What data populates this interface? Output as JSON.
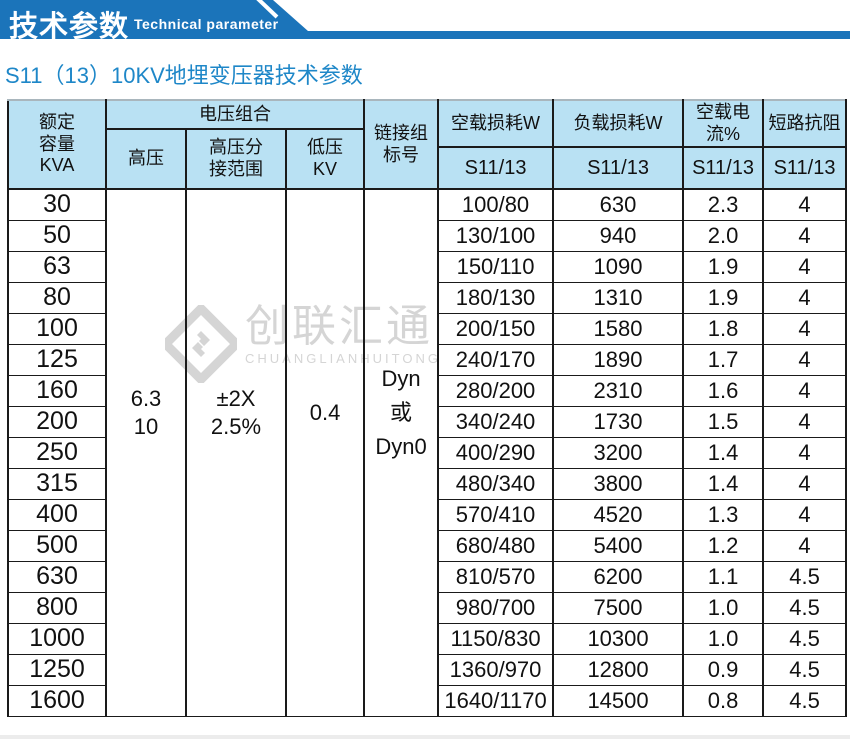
{
  "banner": {
    "title": "技术参数",
    "subtitle": "Technical parameter"
  },
  "section_title": "S11（13）10KV地埋变压器技术参数",
  "watermark": {
    "text": "创联汇通",
    "subtext": "CHUANGLIANHUITONG"
  },
  "colors": {
    "banner_blue": "#1b74ba",
    "section_title_blue": "#1e87c8",
    "table_header_bg": "#b9e1f3",
    "table_border": "#1a1a1a",
    "watermark_gray": "#d5d5d5"
  },
  "table": {
    "headers": {
      "capacity": "额定\n容量\nKVA",
      "voltage_combo": "电压组合",
      "high_voltage": "高压",
      "hv_tap_range": "高压分\n接范围",
      "low_voltage": "低压\nKV",
      "link_group": "链接组\n标号",
      "no_load_loss": "空载损耗W",
      "load_loss": "负载损耗W",
      "no_load_current": "空载电流%",
      "short_circuit_impedance": "短路抗阻",
      "model_s11_13": "S11/13"
    },
    "merged_values": {
      "high_voltage": "6.3\n10",
      "hv_tap_range": "±2X\n2.5%",
      "low_voltage": "0.4",
      "link_group": "Dyn\n或\nDyn0"
    },
    "rows": [
      {
        "kva": "30",
        "no_load_loss": "100/80",
        "load_loss": "630",
        "no_load_current": "2.3",
        "impedance": "4"
      },
      {
        "kva": "50",
        "no_load_loss": "130/100",
        "load_loss": "940",
        "no_load_current": "2.0",
        "impedance": "4"
      },
      {
        "kva": "63",
        "no_load_loss": "150/110",
        "load_loss": "1090",
        "no_load_current": "1.9",
        "impedance": "4"
      },
      {
        "kva": "80",
        "no_load_loss": "180/130",
        "load_loss": "1310",
        "no_load_current": "1.9",
        "impedance": "4"
      },
      {
        "kva": "100",
        "no_load_loss": "200/150",
        "load_loss": "1580",
        "no_load_current": "1.8",
        "impedance": "4"
      },
      {
        "kva": "125",
        "no_load_loss": "240/170",
        "load_loss": "1890",
        "no_load_current": "1.7",
        "impedance": "4"
      },
      {
        "kva": "160",
        "no_load_loss": "280/200",
        "load_loss": "2310",
        "no_load_current": "1.6",
        "impedance": "4"
      },
      {
        "kva": "200",
        "no_load_loss": "340/240",
        "load_loss": "1730",
        "no_load_current": "1.5",
        "impedance": "4"
      },
      {
        "kva": "250",
        "no_load_loss": "400/290",
        "load_loss": "3200",
        "no_load_current": "1.4",
        "impedance": "4"
      },
      {
        "kva": "315",
        "no_load_loss": "480/340",
        "load_loss": "3800",
        "no_load_current": "1.4",
        "impedance": "4"
      },
      {
        "kva": "400",
        "no_load_loss": "570/410",
        "load_loss": "4520",
        "no_load_current": "1.3",
        "impedance": "4"
      },
      {
        "kva": "500",
        "no_load_loss": "680/480",
        "load_loss": "5400",
        "no_load_current": "1.2",
        "impedance": "4"
      },
      {
        "kva": "630",
        "no_load_loss": "810/570",
        "load_loss": "6200",
        "no_load_current": "1.1",
        "impedance": "4.5"
      },
      {
        "kva": "800",
        "no_load_loss": "980/700",
        "load_loss": "7500",
        "no_load_current": "1.0",
        "impedance": "4.5"
      },
      {
        "kva": "1000",
        "no_load_loss": "1150/830",
        "load_loss": "10300",
        "no_load_current": "1.0",
        "impedance": "4.5"
      },
      {
        "kva": "1250",
        "no_load_loss": "1360/970",
        "load_loss": "12800",
        "no_load_current": "0.9",
        "impedance": "4.5"
      },
      {
        "kva": "1600",
        "no_load_loss": "1640/1170",
        "load_loss": "14500",
        "no_load_current": "0.8",
        "impedance": "4.5"
      }
    ]
  }
}
